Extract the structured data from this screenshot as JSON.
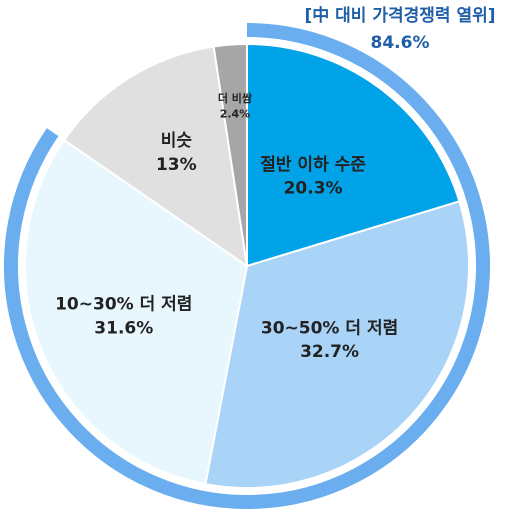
{
  "chart_data": {
    "type": "pie",
    "categories": [
      "절반 이하 수준",
      "30~50% 더 저렴",
      "10~30% 더 저렴",
      "비슷",
      "더 비쌈"
    ],
    "values": [
      20.3,
      32.7,
      31.6,
      13,
      2.4
    ],
    "value_labels": [
      "20.3%",
      "32.7%",
      "31.6%",
      "13%",
      "2.4%"
    ],
    "colors": [
      "#00a3e8",
      "#a9d3f7",
      "#e8f6fd",
      "#e0e0e0",
      "#a6a6a6"
    ],
    "annotation": {
      "text": "[中 대비 가격경쟁력 열위]",
      "value": 84.6,
      "value_label": "84.6%",
      "color": "#6aaef0"
    }
  }
}
